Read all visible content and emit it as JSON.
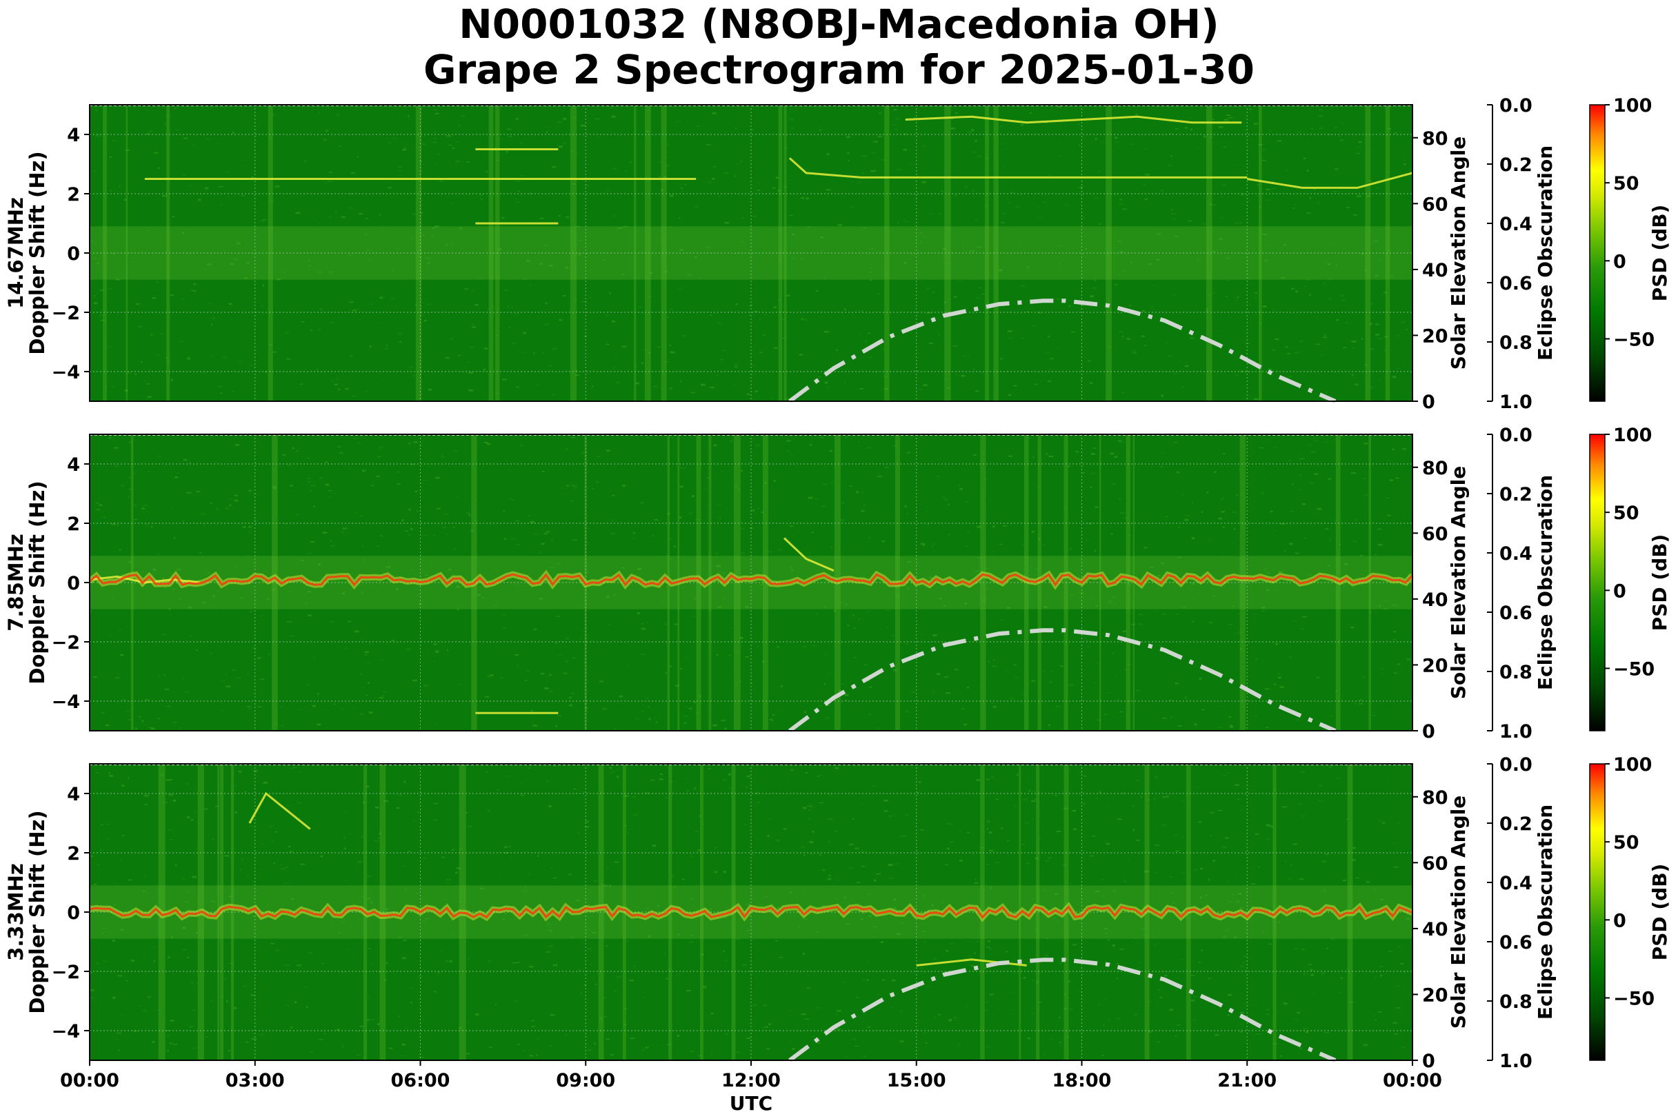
{
  "title": {
    "line1": "N0001032 (N8OBJ-Macedonia OH)",
    "line2": "Grape 2 Spectrogram for 2025-01-30"
  },
  "chart_data": [
    {
      "type": "heatmap",
      "band": "14.67MHz",
      "ylabel": "Doppler Shift (Hz)",
      "ylim": [
        -5,
        5
      ],
      "yticks": [
        "4",
        "2",
        "0",
        "−2",
        "−4"
      ],
      "right_axis": {
        "label": "Solar Elevation Angle",
        "ylim": [
          0,
          90
        ],
        "ticks": [
          "0",
          "20",
          "40",
          "60",
          "80"
        ]
      },
      "eclipse_axis": {
        "label": "Eclipse Obscuration",
        "ylim": [
          1.0,
          0.0
        ],
        "ticks": [
          "0.0",
          "0.2",
          "0.4",
          "0.6",
          "0.8",
          "1.0"
        ]
      },
      "colorbar": {
        "label": "PSD (dB)",
        "range": [
          -90,
          100
        ],
        "ticks": [
          "100",
          "50",
          "0",
          "−50"
        ]
      },
      "center_line_hz": null,
      "features": [
        {
          "x": [
            12.7,
            13.0,
            14.0,
            16.0,
            18.0,
            20.0,
            21.0
          ],
          "y": [
            3.2,
            2.7,
            2.55,
            2.55,
            2.55,
            2.55,
            2.55
          ]
        },
        {
          "x": [
            21.0,
            22.0,
            23.0,
            24.0
          ],
          "y": [
            2.5,
            2.2,
            2.2,
            2.7
          ]
        },
        {
          "x": [
            14.8,
            16.0,
            17.0,
            18.0,
            19.0,
            20.0,
            20.9
          ],
          "y": [
            4.5,
            4.6,
            4.4,
            4.5,
            4.6,
            4.4,
            4.4
          ]
        },
        {
          "x": [
            1.0,
            3.0,
            6.0,
            9.0,
            11.0
          ],
          "y": [
            2.5,
            2.5,
            2.5,
            2.5,
            2.5
          ]
        },
        {
          "x": [
            7.0,
            8.5
          ],
          "y": [
            1.0,
            1.0
          ]
        },
        {
          "x": [
            7.0,
            8.5
          ],
          "y": [
            3.5,
            3.5
          ]
        }
      ]
    },
    {
      "type": "heatmap",
      "band": "7.85MHz",
      "ylabel": "Doppler Shift (Hz)",
      "ylim": [
        -5,
        5
      ],
      "yticks": [
        "4",
        "2",
        "0",
        "−2",
        "−4"
      ],
      "right_axis": {
        "label": "Solar Elevation Angle",
        "ylim": [
          0,
          90
        ],
        "ticks": [
          "0",
          "20",
          "40",
          "60",
          "80"
        ]
      },
      "eclipse_axis": {
        "label": "Eclipse Obscuration",
        "ylim": [
          1.0,
          0.0
        ],
        "ticks": [
          "0.0",
          "0.2",
          "0.4",
          "0.6",
          "0.8",
          "1.0"
        ]
      },
      "colorbar": {
        "label": "PSD (dB)",
        "range": [
          -90,
          100
        ],
        "ticks": [
          "100",
          "50",
          "0",
          "−50"
        ]
      },
      "center_line_hz": 0.1,
      "features": [
        {
          "x": [
            0.0,
            0.5,
            1.0,
            1.5,
            2.0
          ],
          "y": [
            0.1,
            0.2,
            0.0,
            0.1,
            0.0
          ]
        },
        {
          "x": [
            12.6,
            13.0,
            13.5
          ],
          "y": [
            1.5,
            0.8,
            0.4
          ]
        },
        {
          "x": [
            7.0,
            8.5
          ],
          "y": [
            -4.4,
            -4.4
          ]
        }
      ]
    },
    {
      "type": "heatmap",
      "band": "3.33MHz",
      "ylabel": "Doppler Shift (Hz)",
      "ylim": [
        -5,
        5
      ],
      "yticks": [
        "4",
        "2",
        "0",
        "−2",
        "−4"
      ],
      "xticks": [
        "00:00",
        "03:00",
        "06:00",
        "09:00",
        "12:00",
        "15:00",
        "18:00",
        "21:00",
        "00:00"
      ],
      "xlabel": "UTC",
      "right_axis": {
        "label": "Solar Elevation Angle",
        "ylim": [
          0,
          90
        ],
        "ticks": [
          "0",
          "20",
          "40",
          "60",
          "80"
        ]
      },
      "eclipse_axis": {
        "label": "Eclipse Obscuration",
        "ylim": [
          1.0,
          0.0
        ],
        "ticks": [
          "0.0",
          "0.2",
          "0.4",
          "0.6",
          "0.8",
          "1.0"
        ]
      },
      "colorbar": {
        "label": "PSD (dB)",
        "range": [
          -90,
          100
        ],
        "ticks": [
          "100",
          "50",
          "0",
          "−50"
        ]
      },
      "center_line_hz": 0.0,
      "features": [
        {
          "x": [
            2.9,
            3.2,
            3.6,
            4.0
          ],
          "y": [
            3.0,
            4.0,
            3.4,
            2.8
          ]
        },
        {
          "x": [
            15.0,
            16.0,
            17.0
          ],
          "y": [
            -1.8,
            -1.6,
            -1.8
          ]
        }
      ]
    }
  ],
  "solar_elevation": {
    "style": "dash-dot",
    "color": "#d0d6d0",
    "hours": [
      12.7,
      13.5,
      14.5,
      15.5,
      16.5,
      17.3,
      17.7,
      18.5,
      19.5,
      20.5,
      21.5,
      22.6
    ],
    "degrees": [
      0,
      10,
      19.5,
      26,
      29.5,
      30.5,
      30.5,
      29,
      24.5,
      17,
      8,
      0
    ]
  },
  "colors": {
    "background_green": "#0a7a0a",
    "noise_green": "#3ca51e",
    "feature_yellow": "#e8f03a",
    "center_red": "#f04010",
    "colormap": [
      "#000000",
      "#004800",
      "#007800",
      "#3cb400",
      "#c8e600",
      "#ffff00",
      "#ff8000",
      "#ff0000"
    ]
  }
}
